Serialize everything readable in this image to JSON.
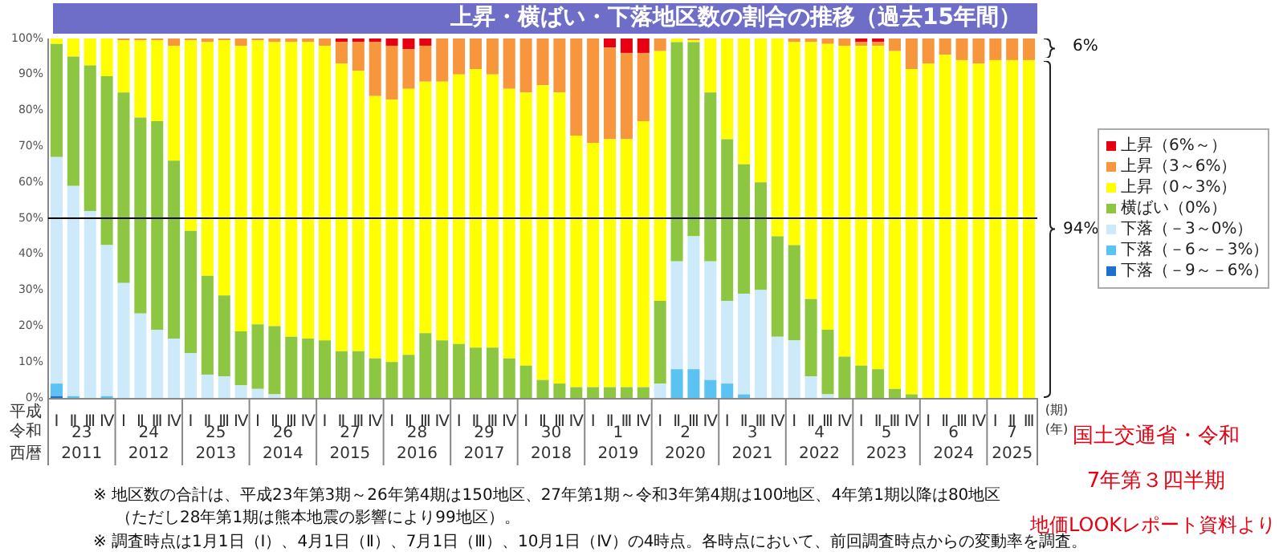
{
  "chart_data": {
    "type": "bar",
    "stacked": true,
    "title": "上昇・横ばい・下落地区数の割合の推移（過去15年間）",
    "categories": [
      "Ⅰ",
      "Ⅱ",
      "Ⅲ",
      "Ⅳ",
      "Ⅰ",
      "Ⅱ",
      "Ⅲ",
      "Ⅳ",
      "Ⅰ",
      "Ⅱ",
      "Ⅲ",
      "Ⅳ",
      "Ⅰ",
      "Ⅱ",
      "Ⅲ",
      "Ⅳ",
      "Ⅰ",
      "Ⅱ",
      "Ⅲ",
      "Ⅳ",
      "Ⅰ",
      "Ⅱ",
      "Ⅲ",
      "Ⅳ",
      "Ⅰ",
      "Ⅱ",
      "Ⅲ",
      "Ⅳ",
      "Ⅰ",
      "Ⅱ",
      "Ⅲ",
      "Ⅳ",
      "Ⅰ",
      "Ⅱ",
      "Ⅲ",
      "Ⅳ",
      "Ⅰ",
      "Ⅱ",
      "Ⅲ",
      "Ⅳ",
      "Ⅰ",
      "Ⅱ",
      "Ⅲ",
      "Ⅳ",
      "Ⅰ",
      "Ⅱ",
      "Ⅲ",
      "Ⅳ",
      "Ⅰ",
      "Ⅱ",
      "Ⅲ",
      "Ⅳ",
      "Ⅰ",
      "Ⅱ",
      "Ⅲ",
      "Ⅳ",
      "Ⅰ",
      "Ⅱ",
      "Ⅲ"
    ],
    "series": [
      {
        "name": "下落（－9～－6%）",
        "color": "#1f6fd0",
        "values": [
          0.5,
          0,
          0,
          0,
          0,
          0,
          0,
          0,
          0,
          0,
          0,
          0,
          0,
          0,
          0,
          0,
          0,
          0,
          0,
          0,
          0,
          0,
          0,
          0,
          0,
          0,
          0,
          0,
          0,
          0,
          0,
          0,
          0,
          0,
          0,
          0,
          0,
          0,
          0,
          0,
          0,
          0,
          0,
          0,
          0,
          0,
          0,
          0,
          0,
          0,
          0,
          0,
          0,
          0,
          0,
          0,
          0,
          0,
          0
        ]
      },
      {
        "name": "下落（－6～－3%）",
        "color": "#5bc2f2",
        "values": [
          3.5,
          0.5,
          0,
          0.5,
          0,
          0,
          0,
          0,
          0,
          0,
          0,
          0,
          0,
          0,
          0,
          0,
          0,
          0,
          0,
          0,
          0,
          0,
          0,
          0,
          0,
          0,
          0,
          0,
          0,
          0,
          0,
          0,
          0,
          0,
          0,
          0,
          0,
          8,
          8,
          5,
          4,
          1,
          0,
          0,
          0,
          0,
          0,
          0,
          0,
          0,
          0,
          0,
          0,
          0,
          0,
          0,
          0,
          0,
          0
        ]
      },
      {
        "name": "下落（－3～0%）",
        "color": "#cdeafa",
        "values": [
          63,
          58.5,
          52,
          42,
          32,
          23.5,
          19,
          16.5,
          12.5,
          6.5,
          6,
          3.5,
          2.5,
          1,
          0,
          0,
          0,
          0,
          0,
          0,
          0,
          0,
          0,
          0,
          0,
          0,
          0,
          0,
          0,
          0,
          0,
          0,
          0,
          0,
          0,
          0,
          4,
          30,
          37,
          33,
          23,
          28,
          30,
          17,
          16,
          6,
          1,
          0,
          0,
          0,
          0,
          0,
          0,
          0,
          0,
          0,
          0,
          0,
          0
        ]
      },
      {
        "name": "横ばい（0%）",
        "color": "#8dc641",
        "values": [
          31.5,
          36,
          40.5,
          47,
          53,
          54.5,
          58,
          49.5,
          34,
          27.5,
          22.5,
          15,
          18,
          19,
          17,
          16.5,
          16,
          13,
          13,
          11,
          10,
          12,
          18,
          16,
          15,
          14,
          14,
          11,
          9,
          5,
          4,
          3,
          3,
          3,
          3,
          3,
          23,
          61,
          54,
          47,
          45,
          36,
          30,
          28,
          26.5,
          21.5,
          18,
          11.5,
          9,
          8,
          2.5,
          1,
          0,
          0,
          0,
          0,
          0,
          0,
          0
        ]
      },
      {
        "name": "上昇（0～3%）",
        "color": "#ffff00",
        "values": [
          1.5,
          5,
          7.5,
          10.5,
          14.5,
          21.5,
          22.5,
          32,
          53,
          65,
          71,
          79.5,
          79,
          79,
          82,
          82.5,
          82,
          80,
          78,
          73,
          73,
          74,
          70,
          72,
          75,
          77.5,
          76,
          75,
          76,
          82,
          81,
          70,
          68,
          69,
          69,
          74,
          69.5,
          1,
          0.5,
          15,
          28,
          35,
          40,
          55,
          56.5,
          71.5,
          79.5,
          86.5,
          89,
          90,
          94,
          90.5,
          93,
          95.5,
          94,
          93,
          94,
          94,
          94
        ]
      },
      {
        "name": "上昇（3～6%）",
        "color": "#f7963d",
        "values": [
          0,
          0,
          0,
          0,
          0.5,
          0.5,
          0.5,
          2,
          0.5,
          1,
          0.5,
          2,
          0.5,
          1,
          1,
          1,
          2,
          6,
          8,
          15,
          15,
          11,
          10,
          12,
          10,
          8.5,
          10,
          14,
          15,
          13,
          15,
          27,
          29,
          25.5,
          24,
          19,
          3.5,
          0,
          0.5,
          0,
          0,
          0,
          0,
          0,
          1,
          1,
          1.5,
          2,
          1,
          1,
          3.5,
          8.5,
          7,
          4.5,
          6,
          7,
          6,
          6,
          6
        ]
      },
      {
        "name": "上昇（6%～）",
        "color": "#e60012",
        "values": [
          0,
          0,
          0,
          0,
          0,
          0,
          0,
          0,
          0,
          0,
          0,
          0,
          0,
          0,
          0,
          0,
          0,
          1,
          1,
          1,
          2,
          3,
          2,
          0,
          0,
          0,
          0,
          0,
          0,
          0,
          0,
          0,
          0,
          2.5,
          4,
          4,
          0,
          0,
          0,
          0,
          0,
          0,
          0,
          0,
          0,
          0,
          0,
          0,
          1,
          1,
          0,
          0,
          0,
          0,
          0,
          0,
          0,
          0,
          0
        ]
      }
    ],
    "ylim": [
      0,
      100
    ],
    "yticks": [
      {
        "value": 0,
        "label": "0%"
      },
      {
        "value": 10,
        "label": "10%"
      },
      {
        "value": 20,
        "label": "20%"
      },
      {
        "value": 30,
        "label": "30%"
      },
      {
        "value": 40,
        "label": "40%"
      },
      {
        "value": 50,
        "label": "50%"
      },
      {
        "value": 60,
        "label": "60%"
      },
      {
        "value": 70,
        "label": "70%"
      },
      {
        "value": 80,
        "label": "80%"
      },
      {
        "value": 90,
        "label": "90%"
      },
      {
        "value": 100,
        "label": "100%"
      }
    ],
    "ref_lines": [
      {
        "axis": "y",
        "value": 50,
        "color": "#000000"
      }
    ],
    "legend": "right",
    "annotations": [
      "23",
      "24",
      "25",
      "26",
      "27",
      "28",
      "29",
      "30",
      "1",
      "2",
      "3",
      "4",
      "5",
      "6",
      "7",
      "2011",
      "2012",
      "2013",
      "2014",
      "2015",
      "2016",
      "2017",
      "2018",
      "2019",
      "2020",
      "2021",
      "2022",
      "2023",
      "2024",
      "2025",
      "平成",
      "令和",
      "西暦",
      "(期)",
      "(年)",
      "6%",
      "94%",
      "※ 地区数の合計は、平成23年第3期～26年第4期は150地区、27年第1期～令和3年第4期は100地区、4年第1期以降は80地区",
      "（ただし28年第1期は熊本地震の影響により99地区）。",
      "※ 調査時点は1月1日（Ⅰ）、4月1日（Ⅱ）、7月1日（Ⅲ）、10月1日（Ⅳ）の4時点。各時点において、前回調査時点からの変動率を調査。",
      "国土交通省・令和",
      "7年第３四半期",
      "地価LOOKレポート資料より"
    ]
  }
}
